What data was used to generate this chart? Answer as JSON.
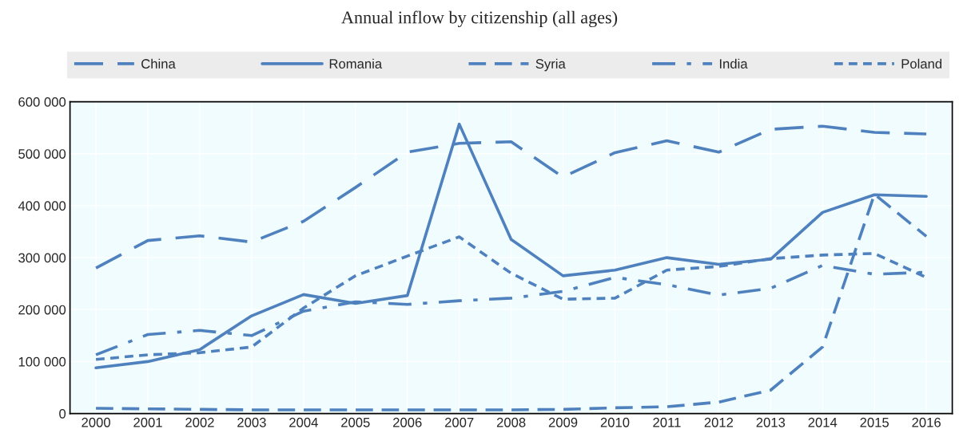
{
  "chart_data": {
    "type": "line",
    "title": "Annual inflow by citizenship (all ages)",
    "categories": [
      "2000",
      "2001",
      "2002",
      "2003",
      "2004",
      "2005",
      "2006",
      "2007",
      "2008",
      "2009",
      "2010",
      "2011",
      "2012",
      "2013",
      "2014",
      "2015",
      "2016"
    ],
    "series": [
      {
        "name": "China",
        "color": "#4e81bd",
        "line_style": "longdash",
        "values": [
          280000,
          333000,
          342000,
          330000,
          370000,
          435000,
          503000,
          520000,
          523000,
          455000,
          502000,
          525000,
          503000,
          547000,
          553000,
          541000,
          538000
        ]
      },
      {
        "name": "Romania",
        "color": "#4e81bd",
        "line_style": "solid",
        "values": [
          88000,
          100000,
          123000,
          188000,
          229000,
          212000,
          227000,
          557000,
          335000,
          265000,
          276000,
          300000,
          287000,
          297000,
          387000,
          421000,
          418000
        ]
      },
      {
        "name": "Syria",
        "color": "#4e81bd",
        "line_style": "dashed",
        "values": [
          10000,
          9000,
          8000,
          7000,
          7000,
          7000,
          7000,
          7000,
          7000,
          8000,
          11000,
          13000,
          22000,
          45000,
          128000,
          422000,
          341000
        ]
      },
      {
        "name": "India",
        "color": "#4e81bd",
        "line_style": "dashdot",
        "values": [
          113000,
          152000,
          160000,
          150000,
          197000,
          215000,
          210000,
          217000,
          222000,
          235000,
          262000,
          248000,
          228000,
          241000,
          285000,
          268000,
          272000
        ]
      },
      {
        "name": "Poland",
        "color": "#4e81bd",
        "line_style": "dotted",
        "values": [
          104000,
          113000,
          117000,
          128000,
          203000,
          265000,
          303000,
          340000,
          270000,
          220000,
          222000,
          276000,
          283000,
          298000,
          305000,
          308000,
          262000
        ]
      }
    ],
    "ylim": [
      0,
      600000
    ],
    "yticks": [
      {
        "value": 0,
        "label": "0"
      },
      {
        "value": 100000,
        "label": "100 000"
      },
      {
        "value": 200000,
        "label": "200 000"
      },
      {
        "value": 300000,
        "label": "300 000"
      },
      {
        "value": 400000,
        "label": "400 000"
      },
      {
        "value": 500000,
        "label": "500 000"
      },
      {
        "value": 600000,
        "label": "600 000"
      }
    ],
    "grid": true,
    "legend": "top",
    "marker": "none"
  }
}
